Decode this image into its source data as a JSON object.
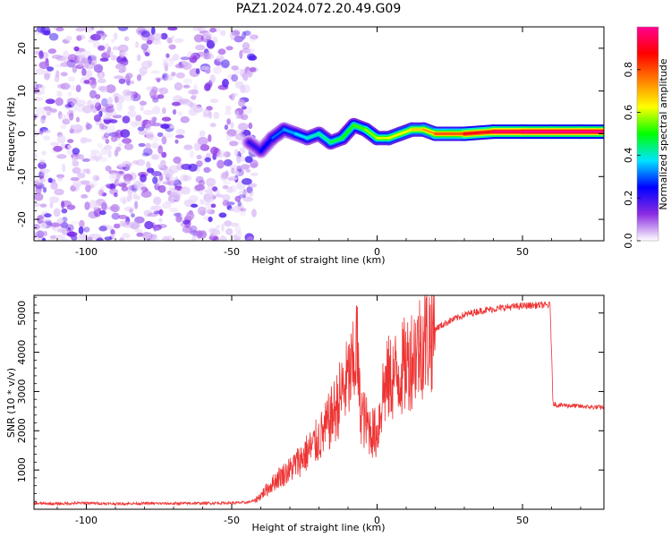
{
  "chart_data": [
    {
      "type": "heatmap",
      "title": "PAZ1.2024.072.20.49.G09",
      "xlabel": "Height of straight line (km)",
      "ylabel": "Frequency (Hz)",
      "xlim": [
        -118,
        78
      ],
      "ylim": [
        -25,
        25
      ],
      "xticks": [
        -100,
        -50,
        0,
        50
      ],
      "yticks": [
        -20,
        -10,
        0,
        10,
        20
      ],
      "colorbar": {
        "label": "Normalized spectral amplitude",
        "range": [
          0,
          1
        ],
        "ticks": [
          0.0,
          0.2,
          0.4,
          0.6,
          0.8
        ],
        "colors": [
          "#ffffff",
          "#8a2be2",
          "#0000ff",
          "#00e5ff",
          "#00ff00",
          "#ffff00",
          "#ff7f00",
          "#ff0000",
          "#ff0090"
        ]
      },
      "noise_region_x": [
        -118,
        -42
      ],
      "signal_trace": {
        "x": [
          -44,
          -40,
          -36,
          -32,
          -28,
          -24,
          -20,
          -16,
          -12,
          -8,
          -4,
          0,
          4,
          8,
          12,
          16,
          20,
          30,
          40,
          50,
          60,
          70,
          78
        ],
        "frequency": [
          -2,
          -4,
          -1,
          1,
          0,
          -1,
          0,
          -2,
          -1,
          2,
          1,
          -1,
          -1,
          0,
          1,
          1,
          0,
          0,
          0.5,
          0.5,
          0.5,
          0.5,
          0.5
        ],
        "amplitude": [
          0.2,
          0.22,
          0.28,
          0.33,
          0.35,
          0.4,
          0.42,
          0.45,
          0.5,
          0.5,
          0.55,
          0.6,
          0.62,
          0.62,
          0.65,
          0.7,
          0.75,
          0.85,
          0.95,
          1.0,
          1.0,
          1.0,
          1.0
        ]
      },
      "grid": false
    },
    {
      "type": "line",
      "xlabel": "Height of straight line (km)",
      "ylabel": "SNR (10 * v/v)",
      "xlim": [
        -118,
        78
      ],
      "ylim": [
        0,
        5450
      ],
      "xticks": [
        -100,
        -50,
        0,
        50
      ],
      "yticks": [
        1000,
        2000,
        3000,
        4000,
        5000
      ],
      "color": "#ee3333",
      "grid": false,
      "series": [
        {
          "x": [
            -118,
            -110,
            -100,
            -90,
            -80,
            -70,
            -60,
            -50,
            -45,
            -42,
            -40,
            -38,
            -36,
            -34,
            -32,
            -30,
            -28,
            -26,
            -24,
            -22,
            -20,
            -18,
            -16,
            -14,
            -12,
            -10,
            -8,
            -7,
            -6,
            -5,
            -4,
            -2,
            0,
            2,
            4,
            6,
            8,
            10,
            12,
            14,
            16,
            18,
            20,
            25,
            30,
            35,
            40,
            45,
            50,
            55,
            59.5,
            60.5,
            62,
            65,
            70,
            75,
            78
          ],
          "y": [
            150,
            140,
            160,
            140,
            150,
            145,
            155,
            160,
            170,
            220,
            350,
            500,
            650,
            800,
            900,
            1000,
            1150,
            1300,
            1450,
            1600,
            1800,
            2000,
            2300,
            2600,
            3000,
            3300,
            3600,
            4300,
            2700,
            2400,
            2200,
            2000,
            1900,
            3000,
            3300,
            3400,
            3500,
            3700,
            3900,
            4100,
            4300,
            4450,
            4600,
            4800,
            4950,
            5050,
            5100,
            5150,
            5180,
            5200,
            5200,
            2700,
            2650,
            2650,
            2620,
            2600,
            2600
          ]
        }
      ]
    }
  ]
}
